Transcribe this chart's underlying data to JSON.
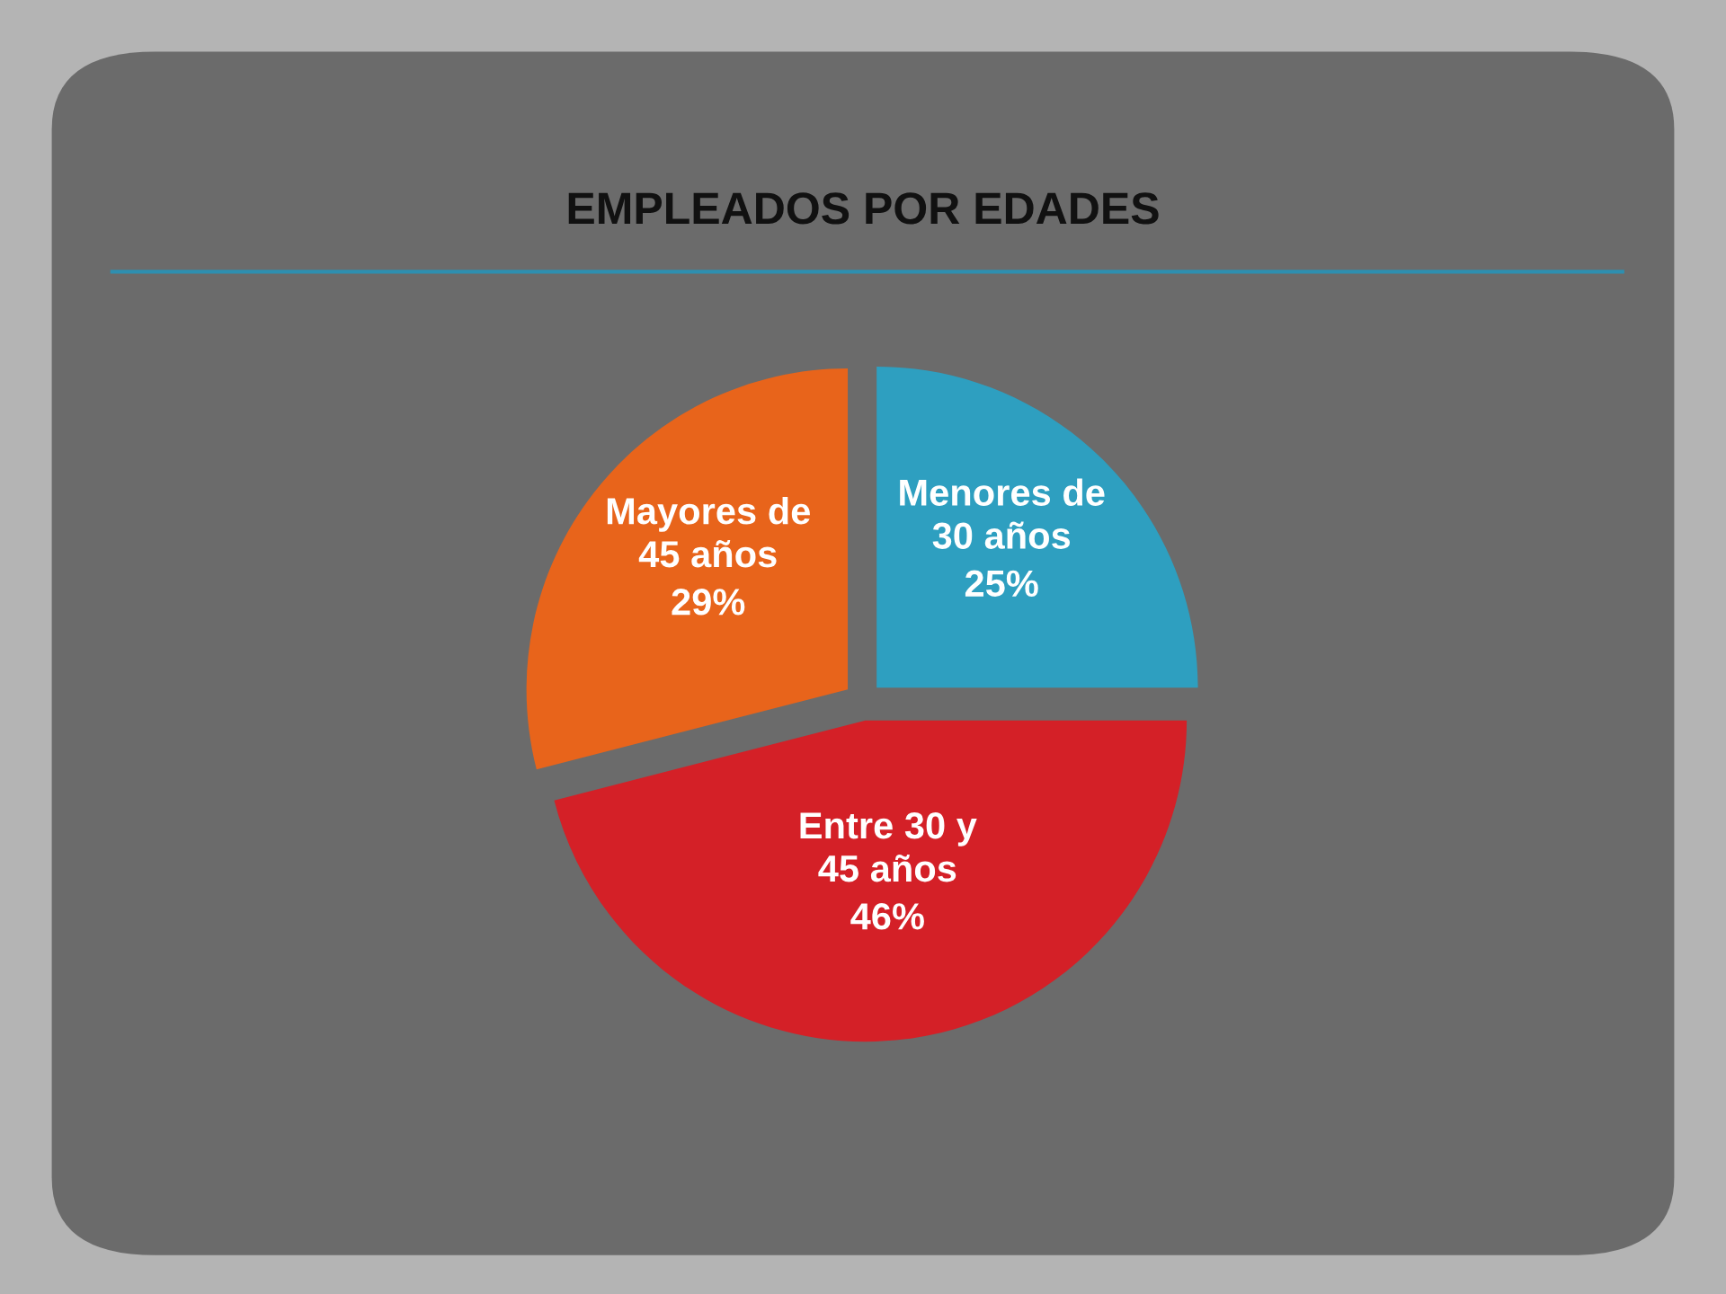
{
  "chart_data": {
    "type": "pie",
    "title": "EMPLEADOS POR EDADES",
    "categories": [
      "Menores de 30 años",
      "Entre 30 y 45 años",
      "Mayores de 45 años"
    ],
    "values": [
      25,
      46,
      29
    ],
    "colors": [
      "#2e9fc0",
      "#d42027",
      "#e8641b"
    ],
    "value_labels": [
      "25%",
      "46%",
      "29%"
    ]
  }
}
